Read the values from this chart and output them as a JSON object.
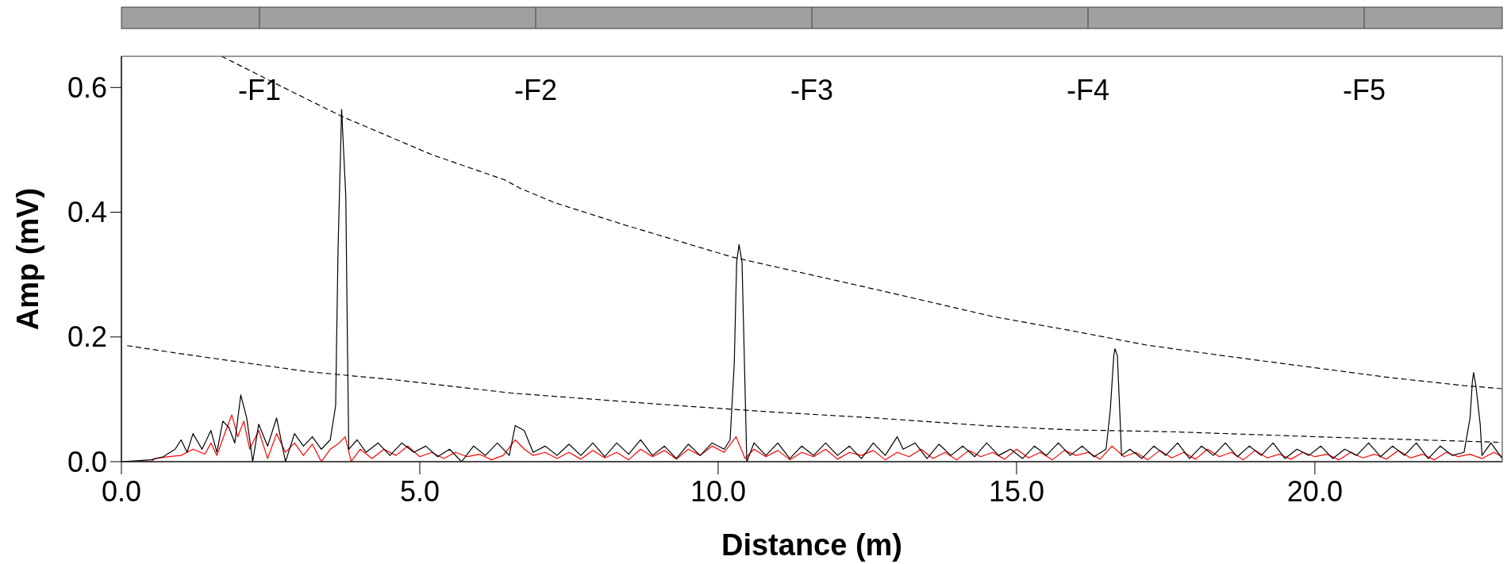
{
  "chart_data": {
    "type": "line",
    "xlabel": "Distance (m)",
    "ylabel": "Amp (mV)",
    "xlim": [
      0,
      23.14
    ],
    "ylim": [
      0,
      0.65
    ],
    "xticks": [
      {
        "value": 0,
        "label": "0.0"
      },
      {
        "value": 5,
        "label": "5.0"
      },
      {
        "value": 10,
        "label": "10.0"
      },
      {
        "value": 15,
        "label": "15.0"
      },
      {
        "value": 20,
        "label": "20.0"
      }
    ],
    "yticks": [
      {
        "value": 0,
        "label": "0.0"
      },
      {
        "value": 0.2,
        "label": "0.2"
      },
      {
        "value": 0.4,
        "label": "0.4"
      },
      {
        "value": 0.6,
        "label": "0.6"
      }
    ],
    "grid": false,
    "annotations": [
      "-F1",
      "-F2",
      "-F3",
      "-F4",
      "-F5"
    ],
    "series": [
      {
        "color": "#ff0000",
        "line_style": "solid",
        "x": [
          0,
          0.5,
          0.55,
          0.8,
          1.0,
          1.2,
          1.4,
          1.5,
          1.6,
          1.75,
          1.85,
          1.95,
          2.05,
          2.15,
          2.3,
          2.45,
          2.6,
          2.75,
          2.9,
          3.05,
          3.2,
          3.35,
          3.5,
          3.65,
          3.75,
          3.85,
          4.0,
          4.2,
          4.4,
          4.6,
          4.8,
          5.0,
          5.2,
          5.4,
          5.6,
          5.8,
          6.0,
          6.2,
          6.4,
          6.6,
          6.75,
          6.9,
          7.1,
          7.3,
          7.5,
          7.7,
          7.9,
          8.1,
          8.3,
          8.5,
          8.7,
          8.9,
          9.1,
          9.3,
          9.5,
          9.7,
          9.9,
          10.1,
          10.3,
          10.45,
          10.6,
          10.8,
          11.0,
          11.2,
          11.4,
          11.6,
          11.8,
          12.0,
          12.2,
          12.4,
          12.6,
          12.8,
          13.0,
          13.2,
          13.4,
          13.6,
          13.8,
          14.0,
          14.2,
          14.4,
          14.6,
          14.8,
          15.0,
          15.2,
          15.4,
          15.6,
          15.8,
          16.0,
          16.2,
          16.4,
          16.6,
          16.8,
          17.0,
          17.2,
          17.4,
          17.6,
          17.8,
          18.0,
          18.2,
          18.4,
          18.6,
          18.8,
          19.0,
          19.2,
          19.4,
          19.6,
          19.8,
          20.0,
          20.2,
          20.4,
          20.6,
          20.8,
          21.0,
          21.2,
          21.4,
          21.6,
          21.8,
          22.0,
          22.2,
          22.4,
          22.6,
          22.8,
          23.0,
          23.14
        ],
        "values": [
          0,
          0,
          0.005,
          0.008,
          0.01,
          0.02,
          0.012,
          0.03,
          0.01,
          0.05,
          0.075,
          0.04,
          0.065,
          0.02,
          0.05,
          0.005,
          0.045,
          0.015,
          0.03,
          0.01,
          0.028,
          0,
          0.02,
          0.03,
          0.04,
          0,
          0.02,
          0.005,
          0.02,
          0.01,
          0.025,
          0.008,
          0.015,
          0.005,
          0.015,
          0.008,
          0.012,
          0.003,
          0.01,
          0.035,
          0.02,
          0.01,
          0.015,
          0.005,
          0.015,
          0.004,
          0.018,
          0.006,
          0.015,
          0.003,
          0.02,
          0.008,
          0.018,
          0.004,
          0.02,
          0.01,
          0.025,
          0.015,
          0.04,
          0.005,
          0.02,
          0.008,
          0.018,
          0.003,
          0.015,
          0.008,
          0.02,
          0.004,
          0.015,
          0.01,
          0.018,
          0.003,
          0.015,
          0.008,
          0.02,
          0.005,
          0.015,
          0.003,
          0.018,
          0.008,
          0.015,
          0.004,
          0.02,
          0.006,
          0.015,
          0.003,
          0.018,
          0.01,
          0.015,
          0.004,
          0.025,
          0.008,
          0.015,
          0.003,
          0.018,
          0.006,
          0.015,
          0.004,
          0.02,
          0.008,
          0.015,
          0.003,
          0.018,
          0.006,
          0.012,
          0.004,
          0.015,
          0.008,
          0.012,
          0.003,
          0.015,
          0.006,
          0.012,
          0.004,
          0.018,
          0.006,
          0.012,
          0.003,
          0.015,
          0.008,
          0.012,
          0.005,
          0.015,
          0.008
        ]
      },
      {
        "color": "#000000",
        "line_style": "solid",
        "x": [
          0,
          0.5,
          0.7,
          0.9,
          1.0,
          1.1,
          1.2,
          1.35,
          1.5,
          1.6,
          1.7,
          1.8,
          1.9,
          2.0,
          2.1,
          2.2,
          2.3,
          2.45,
          2.6,
          2.75,
          2.9,
          3.05,
          3.2,
          3.35,
          3.5,
          3.59,
          3.63,
          3.69,
          3.76,
          3.79,
          3.81,
          3.95,
          4.1,
          4.3,
          4.5,
          4.7,
          4.9,
          5.1,
          5.3,
          5.5,
          5.7,
          5.9,
          6.1,
          6.3,
          6.5,
          6.6,
          6.75,
          6.9,
          7.1,
          7.3,
          7.5,
          7.7,
          7.9,
          8.1,
          8.3,
          8.5,
          8.7,
          8.9,
          9.1,
          9.3,
          9.5,
          9.7,
          9.9,
          10.1,
          10.2,
          10.27,
          10.31,
          10.35,
          10.4,
          10.44,
          10.48,
          10.6,
          10.8,
          11.0,
          11.2,
          11.4,
          11.6,
          11.8,
          12.0,
          12.2,
          12.4,
          12.6,
          12.8,
          13.0,
          13.1,
          13.3,
          13.5,
          13.7,
          13.9,
          14.1,
          14.3,
          14.5,
          14.7,
          14.9,
          15.1,
          15.3,
          15.5,
          15.7,
          15.9,
          16.1,
          16.3,
          16.5,
          16.57,
          16.63,
          16.65,
          16.69,
          16.73,
          16.76,
          16.9,
          17.1,
          17.3,
          17.5,
          17.7,
          17.9,
          18.1,
          18.3,
          18.5,
          18.7,
          18.9,
          19.1,
          19.3,
          19.5,
          19.7,
          19.9,
          20.1,
          20.3,
          20.5,
          20.7,
          20.9,
          21.1,
          21.3,
          21.5,
          21.7,
          21.9,
          22.1,
          22.3,
          22.5,
          22.6,
          22.64,
          22.66,
          22.7,
          22.77,
          22.8,
          22.95,
          23.14
        ],
        "values": [
          0,
          0.003,
          0.008,
          0.02,
          0.035,
          0.015,
          0.045,
          0.02,
          0.05,
          0.015,
          0.065,
          0.055,
          0.03,
          0.107,
          0.07,
          0,
          0.06,
          0.025,
          0.07,
          0,
          0.045,
          0.025,
          0.04,
          0.02,
          0.035,
          0.09,
          0.34,
          0.565,
          0.426,
          0.17,
          0.02,
          0.035,
          0.015,
          0.03,
          0.01,
          0.03,
          0.015,
          0.025,
          0.008,
          0.02,
          0,
          0.025,
          0.01,
          0.03,
          0.01,
          0.058,
          0.05,
          0.015,
          0.025,
          0.01,
          0.028,
          0.01,
          0.03,
          0.008,
          0.03,
          0.012,
          0.035,
          0.01,
          0.025,
          0.005,
          0.028,
          0.01,
          0.03,
          0.02,
          0.035,
          0.158,
          0.32,
          0.348,
          0.32,
          0.16,
          0,
          0.03,
          0.01,
          0.03,
          0.005,
          0.025,
          0.01,
          0.03,
          0.01,
          0.025,
          0.005,
          0.03,
          0.01,
          0.04,
          0.02,
          0.03,
          0.005,
          0.028,
          0.01,
          0.025,
          0.008,
          0.03,
          0.01,
          0.02,
          0.005,
          0.025,
          0.01,
          0.03,
          0.01,
          0.025,
          0.008,
          0.02,
          0.081,
          0.17,
          0.181,
          0.17,
          0.081,
          0.01,
          0.02,
          0.005,
          0.025,
          0.01,
          0.03,
          0.005,
          0.025,
          0.01,
          0.03,
          0.008,
          0.025,
          0.01,
          0.03,
          0.005,
          0.02,
          0.01,
          0.025,
          0.005,
          0.02,
          0.01,
          0.03,
          0.008,
          0.025,
          0.01,
          0.03,
          0.005,
          0.025,
          0.01,
          0.015,
          0.07,
          0.13,
          0.143,
          0.12,
          0.06,
          0.01,
          0.03,
          0.005
        ]
      },
      {
        "color": "#000000",
        "line_style": "dashed",
        "x": [
          1.68,
          2.8,
          3.71,
          5.21,
          6.42,
          6.69,
          7.27,
          8.42,
          10.24,
          12.65,
          14.59,
          15.92,
          17.18,
          18.46,
          20.21,
          21.24,
          22.5,
          23.14
        ],
        "values": [
          0.65,
          0.596,
          0.553,
          0.492,
          0.452,
          0.438,
          0.415,
          0.38,
          0.328,
          0.276,
          0.233,
          0.21,
          0.187,
          0.17,
          0.148,
          0.135,
          0.122,
          0.117
        ]
      },
      {
        "color": "#000000",
        "line_style": "dashed",
        "x": [
          0.1,
          0.86,
          1.89,
          3.16,
          4.61,
          6.54,
          9.03,
          10.84,
          12.65,
          14.59,
          15.92,
          17.6,
          20.33,
          23.14
        ],
        "values": [
          0.186,
          0.175,
          0.161,
          0.144,
          0.131,
          0.11,
          0.092,
          0.08,
          0.07,
          0.057,
          0.051,
          0.048,
          0.039,
          0.031
        ]
      }
    ]
  }
}
